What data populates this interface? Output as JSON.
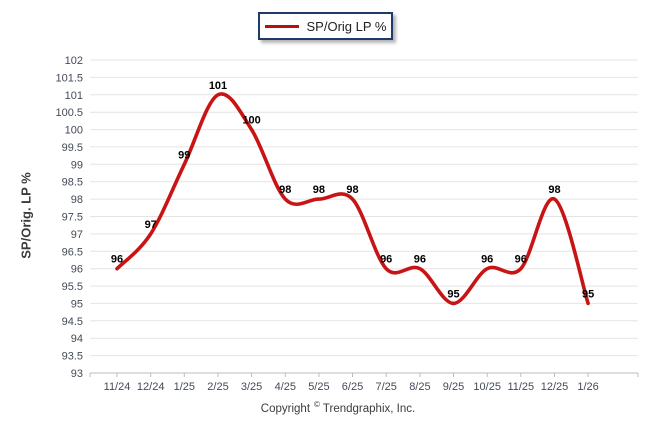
{
  "legend": {
    "label": "SP/Orig LP %",
    "swatch_color": "#B50F0F",
    "border_color": "#1E3A68"
  },
  "y_axis": {
    "title": "SP/Orig. LP %"
  },
  "footer": {
    "prefix": "Copyright",
    "symbol": "©",
    "company": "Trendgraphix, Inc."
  },
  "chart_data": {
    "type": "line",
    "title": "",
    "x": [
      "11/24",
      "12/24",
      "1/25",
      "2/25",
      "3/25",
      "4/25",
      "5/25",
      "6/25",
      "7/25",
      "8/25",
      "9/25",
      "10/25",
      "11/25",
      "12/25",
      "1/26"
    ],
    "series": [
      {
        "name": "SP/Orig LP %",
        "color": "#C81414",
        "values": [
          96,
          97,
          99,
          101,
          100,
          98,
          98,
          98,
          96,
          96,
          95,
          96,
          96,
          98,
          95
        ]
      }
    ],
    "xlabel": "",
    "ylabel": "SP/Orig. LP %",
    "ylim": [
      93,
      102
    ],
    "ytick_step": 0.5,
    "grid": true,
    "smooth": true,
    "data_labels": true,
    "legend_position": "top-center",
    "colors": {
      "gridline": "#E4E4E4",
      "axis": "#BDBDBD",
      "tick_label": "#434B58",
      "data_label": "#000000"
    }
  }
}
